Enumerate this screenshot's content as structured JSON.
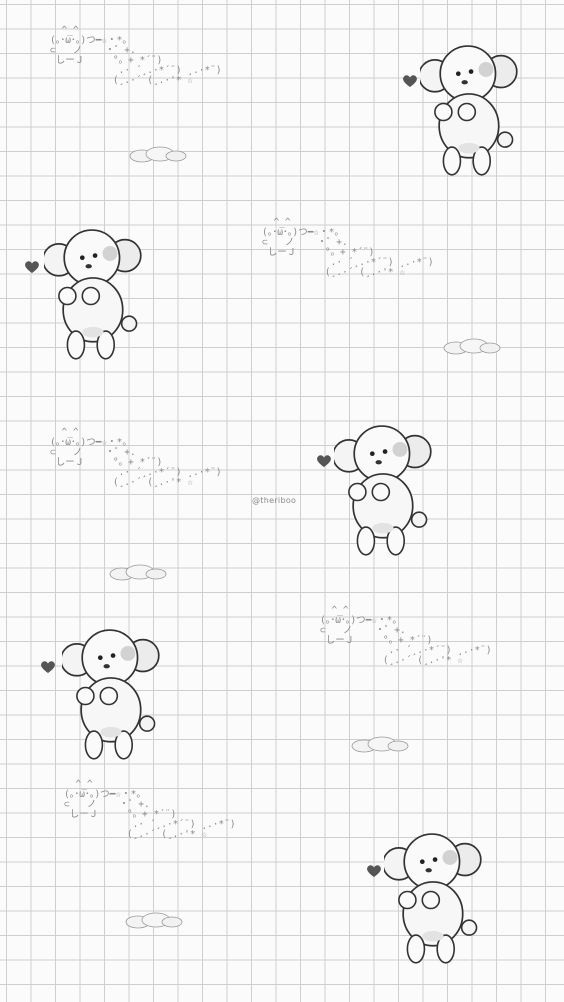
{
  "kaomoji_lines": [
    "  ^_^",
    "(｡･ω･｡)つ━☆・*。",
    "⊂   ノ    ・゜+.",
    " しーＪ     °。+ *´¨)",
    "            .· ´¸.·*´¨) ¸.·*¨)",
    "           (¸.·´ (¸.·'* ☆"
  ],
  "watermark": "@theriboo",
  "colors": {
    "grid": "#cfcfcf",
    "background": "#fbfbfb",
    "ink": "#8a8a8a",
    "heart": "#555555"
  }
}
